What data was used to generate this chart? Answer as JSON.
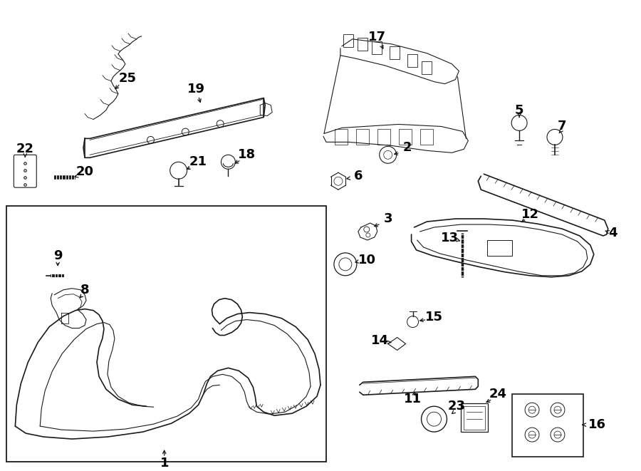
{
  "bg_color": "#ffffff",
  "line_color": "#1a1a1a",
  "text_color": "#000000",
  "fig_width": 9.0,
  "fig_height": 6.61,
  "dpi": 100
}
